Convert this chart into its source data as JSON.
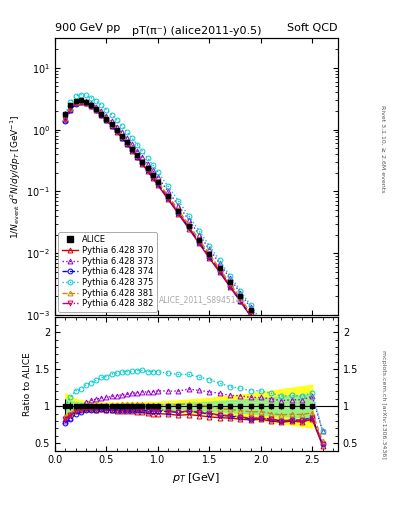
{
  "title_top_left": "900 GeV pp",
  "title_top_right": "Soft QCD",
  "plot_title": "pT(π⁻) (alice2011-y0.5)",
  "watermark": "ALICE_2011_S8945144",
  "right_label_top": "Rivet 3.1.10, ≥ 2.6M events",
  "right_label_bottom": "mcplots.cern.ch [arXiv:1306.3436]",
  "xlabel": "p_{T} [GeV]",
  "ylabel_main": "1/N_{event} d^{2}N/dy/dp_{T} [GeV^{-1}]",
  "ylabel_ratio": "Ratio to ALICE",
  "xlim": [
    0,
    2.75
  ],
  "ylim_main": [
    0.001,
    30
  ],
  "ylim_ratio": [
    0.4,
    2.2
  ],
  "ratio_yticks": [
    0.5,
    1.0,
    1.5,
    2.0
  ],
  "ratio_yticklabels": [
    "0.5",
    "1",
    "1.5",
    "2"
  ],
  "pt_alice": [
    0.1,
    0.15,
    0.2,
    0.25,
    0.3,
    0.35,
    0.4,
    0.45,
    0.5,
    0.55,
    0.6,
    0.65,
    0.7,
    0.75,
    0.8,
    0.85,
    0.9,
    0.95,
    1.0,
    1.1,
    1.2,
    1.3,
    1.4,
    1.5,
    1.6,
    1.7,
    1.8,
    1.9,
    2.0,
    2.1,
    2.2,
    2.3,
    2.4,
    2.5
  ],
  "alice": [
    1.8,
    2.5,
    2.9,
    3.0,
    2.8,
    2.5,
    2.15,
    1.8,
    1.5,
    1.22,
    0.98,
    0.78,
    0.62,
    0.49,
    0.385,
    0.3,
    0.235,
    0.182,
    0.14,
    0.083,
    0.049,
    0.028,
    0.0165,
    0.0097,
    0.0058,
    0.0034,
    0.002,
    0.00118,
    0.00068,
    0.0004,
    0.00024,
    0.000138,
    8e-05,
    4.5e-05
  ],
  "alice_err": [
    0.18,
    0.13,
    0.1,
    0.08,
    0.07,
    0.06,
    0.055,
    0.045,
    0.038,
    0.03,
    0.025,
    0.02,
    0.016,
    0.013,
    0.01,
    0.008,
    0.006,
    0.005,
    0.004,
    0.0025,
    0.0015,
    0.0009,
    0.00055,
    0.00032,
    0.00019,
    0.00011,
    6.5e-05,
    3.8e-05,
    2.2e-05,
    1.3e-05,
    7.7e-06,
    4.5e-06,
    2.6e-06,
    1.5e-06
  ],
  "pt_mc": [
    0.1,
    0.15,
    0.2,
    0.25,
    0.3,
    0.35,
    0.4,
    0.45,
    0.5,
    0.55,
    0.6,
    0.65,
    0.7,
    0.75,
    0.8,
    0.85,
    0.9,
    0.95,
    1.0,
    1.1,
    1.2,
    1.3,
    1.4,
    1.5,
    1.6,
    1.7,
    1.8,
    1.9,
    2.0,
    2.1,
    2.2,
    2.3,
    2.4,
    2.5,
    2.6
  ],
  "pythia370": [
    1.5,
    2.2,
    2.7,
    2.85,
    2.7,
    2.4,
    2.05,
    1.72,
    1.42,
    1.15,
    0.92,
    0.73,
    0.58,
    0.455,
    0.355,
    0.275,
    0.212,
    0.163,
    0.126,
    0.074,
    0.043,
    0.0248,
    0.0144,
    0.0083,
    0.0049,
    0.00285,
    0.00165,
    0.00096,
    0.00056,
    0.00032,
    0.000188,
    0.00011,
    6.3e-05,
    3.7e-05,
    2.1e-05
  ],
  "pythia373": [
    1.45,
    2.1,
    2.75,
    3.0,
    2.95,
    2.7,
    2.35,
    2.0,
    1.68,
    1.38,
    1.12,
    0.9,
    0.72,
    0.575,
    0.455,
    0.358,
    0.28,
    0.218,
    0.169,
    0.1,
    0.059,
    0.0345,
    0.02,
    0.0116,
    0.0068,
    0.0039,
    0.00228,
    0.00132,
    0.00076,
    0.00044,
    0.000258,
    0.00015,
    8.7e-05,
    5.1e-05,
    3e-05
  ],
  "pythia374": [
    1.4,
    2.05,
    2.6,
    2.75,
    2.65,
    2.38,
    2.05,
    1.72,
    1.43,
    1.165,
    0.935,
    0.745,
    0.59,
    0.465,
    0.365,
    0.284,
    0.22,
    0.17,
    0.131,
    0.077,
    0.045,
    0.0261,
    0.0151,
    0.0087,
    0.0051,
    0.00294,
    0.0017,
    0.00098,
    0.00057,
    0.00033,
    0.000192,
    0.000112,
    6.5e-05,
    3.8e-05,
    2.2e-05
  ],
  "pythia375": [
    1.8,
    2.8,
    3.5,
    3.7,
    3.6,
    3.3,
    2.9,
    2.5,
    2.1,
    1.75,
    1.42,
    1.14,
    0.91,
    0.72,
    0.57,
    0.445,
    0.345,
    0.267,
    0.205,
    0.12,
    0.07,
    0.04,
    0.023,
    0.0132,
    0.0076,
    0.0043,
    0.00248,
    0.00143,
    0.00082,
    0.00047,
    0.000273,
    0.000158,
    9.1e-05,
    5.3e-05,
    3e-05
  ],
  "pythia381": [
    1.55,
    2.25,
    2.8,
    2.95,
    2.8,
    2.52,
    2.17,
    1.83,
    1.52,
    1.24,
    1.0,
    0.8,
    0.635,
    0.503,
    0.395,
    0.308,
    0.239,
    0.185,
    0.143,
    0.084,
    0.05,
    0.0289,
    0.0167,
    0.0097,
    0.0056,
    0.00325,
    0.00188,
    0.00109,
    0.00063,
    0.00036,
    0.000212,
    0.000123,
    7.1e-05,
    4.1e-05,
    2.4e-05
  ],
  "pythia382": [
    1.5,
    2.2,
    2.7,
    2.85,
    2.7,
    2.42,
    2.08,
    1.75,
    1.45,
    1.18,
    0.95,
    0.76,
    0.6,
    0.474,
    0.372,
    0.289,
    0.224,
    0.173,
    0.133,
    0.078,
    0.045,
    0.0262,
    0.0152,
    0.0088,
    0.0051,
    0.00297,
    0.00171,
    0.00099,
    0.00057,
    0.00033,
    0.000193,
    0.000112,
    6.4e-05,
    3.8e-05,
    2.2e-05
  ],
  "colors": {
    "alice": "#000000",
    "p370": "#cc0000",
    "p373": "#9900cc",
    "p374": "#0000ff",
    "p375": "#00cccc",
    "p381": "#cc8800",
    "p382": "#cc0066"
  },
  "yellow_band_low": [
    0.82,
    0.87,
    0.9,
    0.92,
    0.93,
    0.94,
    0.94,
    0.95,
    0.95,
    0.95,
    0.95,
    0.95,
    0.95,
    0.95,
    0.95,
    0.95,
    0.94,
    0.94,
    0.94,
    0.93,
    0.92,
    0.91,
    0.9,
    0.89,
    0.87,
    0.86,
    0.84,
    0.83,
    0.81,
    0.79,
    0.77,
    0.75,
    0.73,
    0.71
  ],
  "yellow_band_high": [
    1.18,
    1.13,
    1.1,
    1.08,
    1.07,
    1.06,
    1.06,
    1.05,
    1.05,
    1.05,
    1.05,
    1.05,
    1.05,
    1.05,
    1.05,
    1.05,
    1.06,
    1.06,
    1.06,
    1.07,
    1.08,
    1.09,
    1.1,
    1.11,
    1.13,
    1.14,
    1.16,
    1.17,
    1.19,
    1.21,
    1.23,
    1.25,
    1.27,
    1.29
  ],
  "green_band_low": [
    0.9,
    0.93,
    0.94,
    0.95,
    0.96,
    0.97,
    0.97,
    0.97,
    0.97,
    0.97,
    0.97,
    0.97,
    0.97,
    0.97,
    0.97,
    0.97,
    0.97,
    0.97,
    0.97,
    0.96,
    0.96,
    0.95,
    0.95,
    0.94,
    0.93,
    0.92,
    0.91,
    0.9,
    0.89,
    0.88,
    0.87,
    0.86,
    0.85,
    0.84
  ],
  "green_band_high": [
    1.1,
    1.07,
    1.06,
    1.05,
    1.04,
    1.03,
    1.03,
    1.03,
    1.03,
    1.03,
    1.03,
    1.03,
    1.03,
    1.03,
    1.03,
    1.03,
    1.03,
    1.03,
    1.03,
    1.04,
    1.04,
    1.05,
    1.05,
    1.06,
    1.07,
    1.08,
    1.09,
    1.1,
    1.11,
    1.12,
    1.13,
    1.14,
    1.15,
    1.16
  ]
}
